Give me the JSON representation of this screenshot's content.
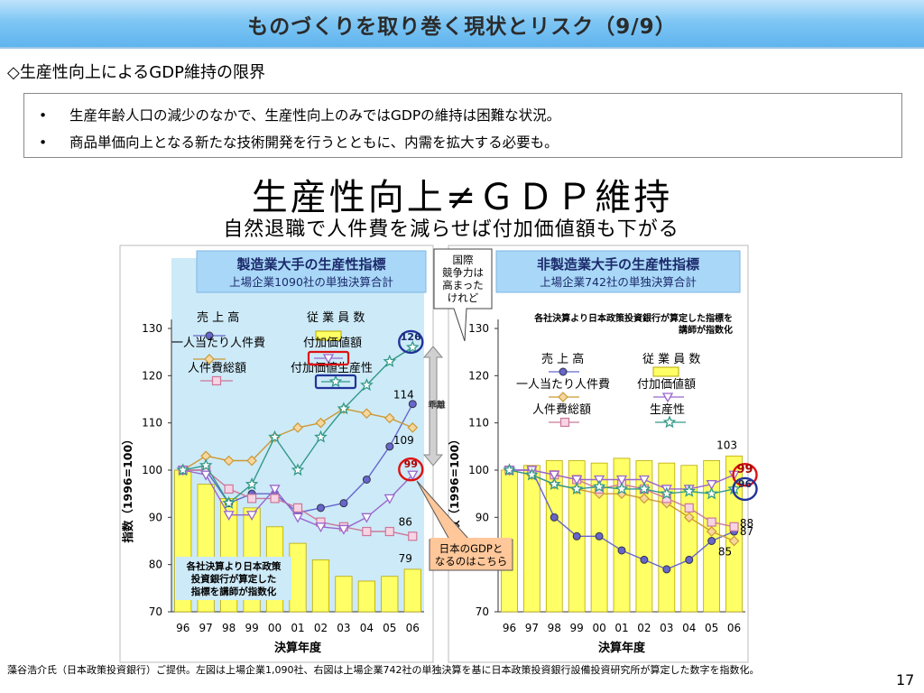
{
  "slide": {
    "title": "ものづくりを取り巻く現状とリスク（9/9）",
    "subtitle": "◇生産性向上によるGDP維持の限界",
    "bullets": [
      "生産年齢人口の減少のなかで、生産性向上のみではGDPの維持は困難な状況。",
      "商品単価向上となる新たな技術開発を行うとともに、内需を拡大する必要も。"
    ],
    "bullet_marker": "•",
    "main_heading": "生産性向上≠ＧＤＰ維持",
    "sub_heading": "自然退職で人件費を減らせば付加価値額も下がる",
    "footnote": "藻谷浩介氏（日本政策投資銀行）ご提供。左図は上場企業1,090社、右図は上場企業742社の単独決算を基に日本政策投資銀行設備投資研究所が算定した数字を指数化。",
    "page_number": "17"
  },
  "callouts": {
    "intl": [
      "国際",
      "競争力は",
      "高まった",
      "けれど"
    ],
    "gdp": [
      "日本のGDPと",
      "なるのはこちら"
    ],
    "divergence": "乖離"
  },
  "colors": {
    "panel_bg": "#cdeaf8",
    "bar_fill": "#ffff66",
    "bar_stroke": "#b8a800",
    "sales": "#6666cc",
    "per_capita_labor": "#cc9933",
    "total_labor": "#cc7799",
    "value_added": "#9966cc",
    "productivity": "#339988",
    "highlight_red": "#dd1111",
    "highlight_blue": "#223399",
    "gdp_callout_fill": "#ffc79a"
  },
  "chart_data": [
    {
      "type": "bar+line",
      "title": "製造業大手の生産性指標",
      "subtitle": "上場企業1090社の単独決算合計",
      "xlabel": "決算年度",
      "ylabel": "指数（1996=100）",
      "categories": [
        "96",
        "97",
        "98",
        "99",
        "00",
        "01",
        "02",
        "03",
        "04",
        "05",
        "06"
      ],
      "ylim": [
        70,
        130
      ],
      "yticks": [
        70,
        80,
        90,
        100,
        110,
        120,
        130
      ],
      "grid": false,
      "note": [
        "各社決算より日本政策",
        "投資銀行が算定した",
        "指標を講師が指数化"
      ],
      "bars": {
        "name": "従業員数",
        "values": [
          100,
          97,
          94,
          92,
          88,
          84.5,
          81,
          77.5,
          76.5,
          77.5,
          79
        ]
      },
      "series": [
        {
          "name": "売上高",
          "key": "sales",
          "marker": "circle",
          "values": [
            100,
            100,
            93,
            95,
            95,
            91,
            92,
            93,
            98,
            105,
            114
          ]
        },
        {
          "name": "一人当たり人件費",
          "key": "per_capita_labor",
          "marker": "diamond",
          "values": [
            100,
            103,
            102,
            102,
            107,
            109,
            110,
            113,
            112,
            111,
            109
          ]
        },
        {
          "name": "人件費総額",
          "key": "total_labor",
          "marker": "square",
          "values": [
            100,
            100,
            96,
            94,
            94,
            92,
            89,
            88,
            87,
            87,
            86
          ]
        },
        {
          "name": "付加価値額",
          "key": "value_added",
          "marker": "triangle-down",
          "values": [
            100,
            99,
            90.5,
            90.5,
            96,
            90,
            88,
            87.5,
            90,
            94,
            99
          ]
        },
        {
          "name": "付加価値生産性",
          "key": "productivity",
          "marker": "star",
          "values": [
            100,
            101,
            93,
            97,
            107,
            100,
            107,
            113,
            118,
            123,
            126
          ]
        }
      ],
      "end_labels": [
        {
          "text": "126",
          "series": "productivity",
          "circle": "blue"
        },
        {
          "text": "114",
          "series": "sales"
        },
        {
          "text": "109",
          "series": "per_capita_labor"
        },
        {
          "text": "99",
          "series": "value_added",
          "circle": "red"
        },
        {
          "text": "86",
          "series": "total_labor"
        },
        {
          "text": "79",
          "series": "bars"
        }
      ]
    },
    {
      "type": "bar+line",
      "title": "非製造業大手の生産性指標",
      "subtitle": "上場企業742社の単独決算合計",
      "xlabel": "決算年度",
      "ylabel": "指数（1996=100）",
      "categories": [
        "96",
        "97",
        "98",
        "99",
        "00",
        "01",
        "02",
        "03",
        "04",
        "05",
        "06"
      ],
      "ylim": [
        70,
        130
      ],
      "yticks": [
        70,
        80,
        90,
        100,
        110,
        120,
        130
      ],
      "grid": false,
      "note": [
        "各社決算より日本政策投資銀行が算定した指標を",
        "講師が指数化"
      ],
      "bars": {
        "name": "従業員数",
        "values": [
          100,
          101,
          102,
          102,
          101.5,
          102.5,
          102,
          101.5,
          101,
          102,
          103
        ]
      },
      "series": [
        {
          "name": "売上高",
          "key": "sales",
          "marker": "circle",
          "values": [
            100,
            100,
            90,
            86,
            86,
            83,
            81,
            79,
            81,
            85,
            87
          ]
        },
        {
          "name": "一人当たり人件費",
          "key": "per_capita_labor",
          "marker": "diamond",
          "values": [
            100,
            99,
            97,
            96,
            95,
            95,
            94,
            93,
            90,
            87,
            85
          ]
        },
        {
          "name": "人件費総額",
          "key": "total_labor",
          "marker": "square",
          "values": [
            100,
            100,
            99,
            98,
            96,
            97,
            96,
            94,
            92,
            89,
            88
          ]
        },
        {
          "name": "付加価値額",
          "key": "value_added",
          "marker": "triangle-down",
          "values": [
            100,
            100,
            99,
            98,
            98,
            98,
            98,
            96,
            96,
            97,
            99
          ]
        },
        {
          "name": "生産性",
          "key": "productivity",
          "marker": "star",
          "values": [
            100,
            99,
            97,
            96,
            96.5,
            96,
            96,
            95,
            95.5,
            95,
            96
          ]
        }
      ],
      "end_labels": [
        {
          "text": "103",
          "series": "bars"
        },
        {
          "text": "99",
          "series": "value_added",
          "circle": "red"
        },
        {
          "text": "96",
          "series": "productivity",
          "circle": "blue"
        },
        {
          "text": "88",
          "series": "total_labor"
        },
        {
          "text": "87",
          "series": "sales"
        },
        {
          "text": "85",
          "series": "per_capita_labor"
        }
      ]
    }
  ]
}
